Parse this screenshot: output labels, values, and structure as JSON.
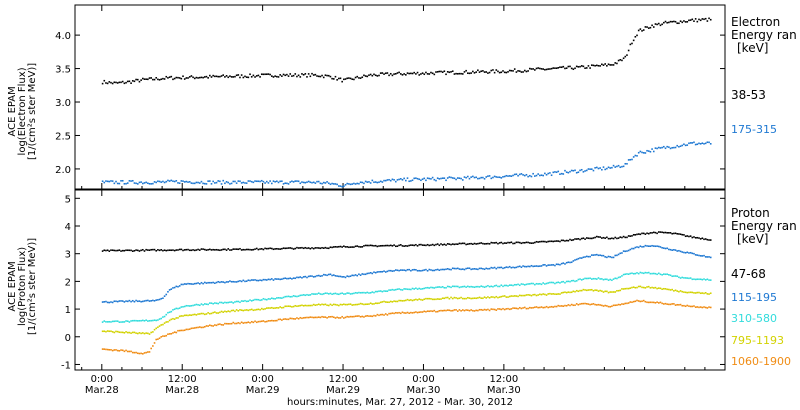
{
  "chart_data": [
    {
      "type": "scatter",
      "panel": "electron",
      "ylabel_lines": [
        "ACE EPAM",
        "log(Electron Flux)",
        "[1/(cm²s ster MeV)]"
      ],
      "legend_title": [
        "Electron",
        "Energy ran",
        "[keV]"
      ],
      "ylim": [
        1.7,
        4.45
      ],
      "yticks": [
        2.0,
        2.5,
        3.0,
        3.5,
        4.0
      ],
      "ytick_labels": [
        "2.0",
        "2.5",
        "3.0",
        "3.5",
        "4.0"
      ],
      "series": [
        {
          "name": "38-53",
          "color": "#000000",
          "points": [
            [
              0,
              3.3
            ],
            [
              2,
              3.28
            ],
            [
              4,
              3.3
            ],
            [
              6,
              3.33
            ],
            [
              10,
              3.36
            ],
            [
              14,
              3.37
            ],
            [
              18,
              3.38
            ],
            [
              22,
              3.39
            ],
            [
              26,
              3.4
            ],
            [
              30,
              3.4
            ],
            [
              32,
              3.4
            ],
            [
              34,
              3.38
            ],
            [
              36,
              3.32
            ],
            [
              38,
              3.36
            ],
            [
              40,
              3.4
            ],
            [
              44,
              3.42
            ],
            [
              48,
              3.43
            ],
            [
              52,
              3.44
            ],
            [
              56,
              3.45
            ],
            [
              60,
              3.46
            ],
            [
              64,
              3.48
            ],
            [
              68,
              3.5
            ],
            [
              72,
              3.52
            ],
            [
              74,
              3.54
            ],
            [
              76,
              3.56
            ],
            [
              77,
              3.6
            ],
            [
              78,
              3.66
            ],
            [
              79,
              3.9
            ],
            [
              80,
              4.06
            ],
            [
              82,
              4.14
            ],
            [
              84,
              4.18
            ],
            [
              86,
              4.2
            ],
            [
              88,
              4.22
            ],
            [
              90,
              4.23
            ],
            [
              91,
              4.23
            ]
          ]
        },
        {
          "name": "175-315",
          "color": "#1e78d2",
          "points": [
            [
              0,
              1.8
            ],
            [
              4,
              1.8
            ],
            [
              8,
              1.8
            ],
            [
              12,
              1.81
            ],
            [
              16,
              1.8
            ],
            [
              20,
              1.8
            ],
            [
              24,
              1.8
            ],
            [
              28,
              1.8
            ],
            [
              32,
              1.8
            ],
            [
              34,
              1.78
            ],
            [
              36,
              1.75
            ],
            [
              38,
              1.8
            ],
            [
              42,
              1.82
            ],
            [
              46,
              1.84
            ],
            [
              50,
              1.85
            ],
            [
              54,
              1.86
            ],
            [
              58,
              1.88
            ],
            [
              62,
              1.9
            ],
            [
              66,
              1.92
            ],
            [
              70,
              1.96
            ],
            [
              74,
              2.0
            ],
            [
              76,
              2.02
            ],
            [
              78,
              2.06
            ],
            [
              79,
              2.16
            ],
            [
              80,
              2.24
            ],
            [
              82,
              2.28
            ],
            [
              84,
              2.32
            ],
            [
              86,
              2.35
            ],
            [
              88,
              2.38
            ],
            [
              91,
              2.38
            ]
          ]
        }
      ]
    },
    {
      "type": "scatter",
      "panel": "proton",
      "ylabel_lines": [
        "ACE EPAM",
        "log(Proton Flux)",
        "[1/(cm²s ster MeV)]"
      ],
      "legend_title": [
        "Proton",
        "Energy ran",
        "[keV]"
      ],
      "ylim": [
        -1.2,
        5.3
      ],
      "yticks": [
        -1,
        0,
        1,
        2,
        3,
        4,
        5
      ],
      "ytick_labels": [
        "-1",
        "0",
        "1",
        "2",
        "3",
        "4",
        "5"
      ],
      "series": [
        {
          "name": "47-68",
          "color": "#000000",
          "points": [
            [
              0,
              3.1
            ],
            [
              6,
              3.12
            ],
            [
              12,
              3.14
            ],
            [
              18,
              3.15
            ],
            [
              22,
              3.16
            ],
            [
              26,
              3.18
            ],
            [
              30,
              3.2
            ],
            [
              34,
              3.22
            ],
            [
              36,
              3.25
            ],
            [
              40,
              3.28
            ],
            [
              46,
              3.3
            ],
            [
              52,
              3.34
            ],
            [
              58,
              3.38
            ],
            [
              64,
              3.4
            ],
            [
              68,
              3.45
            ],
            [
              72,
              3.55
            ],
            [
              74,
              3.6
            ],
            [
              76,
              3.55
            ],
            [
              78,
              3.6
            ],
            [
              80,
              3.7
            ],
            [
              82,
              3.76
            ],
            [
              84,
              3.76
            ],
            [
              86,
              3.7
            ],
            [
              88,
              3.6
            ],
            [
              91,
              3.5
            ]
          ]
        },
        {
          "name": "115-195",
          "color": "#1e78d2",
          "points": [
            [
              0,
              1.25
            ],
            [
              4,
              1.28
            ],
            [
              8,
              1.3
            ],
            [
              9,
              1.4
            ],
            [
              10,
              1.7
            ],
            [
              12,
              1.9
            ],
            [
              16,
              1.95
            ],
            [
              20,
              2.0
            ],
            [
              24,
              2.05
            ],
            [
              28,
              2.1
            ],
            [
              32,
              2.2
            ],
            [
              34,
              2.25
            ],
            [
              36,
              2.15
            ],
            [
              40,
              2.3
            ],
            [
              44,
              2.4
            ],
            [
              48,
              2.4
            ],
            [
              52,
              2.45
            ],
            [
              56,
              2.45
            ],
            [
              60,
              2.5
            ],
            [
              64,
              2.55
            ],
            [
              68,
              2.6
            ],
            [
              70,
              2.7
            ],
            [
              72,
              2.9
            ],
            [
              74,
              2.95
            ],
            [
              76,
              2.85
            ],
            [
              78,
              3.1
            ],
            [
              80,
              3.25
            ],
            [
              82,
              3.3
            ],
            [
              84,
              3.2
            ],
            [
              86,
              3.1
            ],
            [
              88,
              3.0
            ],
            [
              91,
              2.85
            ]
          ]
        },
        {
          "name": "310-580",
          "color": "#32dcdc",
          "points": [
            [
              0,
              0.55
            ],
            [
              4,
              0.55
            ],
            [
              8,
              0.6
            ],
            [
              9,
              0.7
            ],
            [
              10,
              0.9
            ],
            [
              12,
              1.1
            ],
            [
              16,
              1.2
            ],
            [
              20,
              1.25
            ],
            [
              24,
              1.35
            ],
            [
              28,
              1.45
            ],
            [
              32,
              1.55
            ],
            [
              36,
              1.55
            ],
            [
              40,
              1.6
            ],
            [
              44,
              1.7
            ],
            [
              48,
              1.75
            ],
            [
              52,
              1.8
            ],
            [
              56,
              1.8
            ],
            [
              60,
              1.85
            ],
            [
              64,
              1.9
            ],
            [
              68,
              1.95
            ],
            [
              70,
              2.0
            ],
            [
              72,
              2.1
            ],
            [
              74,
              2.1
            ],
            [
              76,
              2.05
            ],
            [
              78,
              2.25
            ],
            [
              80,
              2.3
            ],
            [
              82,
              2.3
            ],
            [
              84,
              2.25
            ],
            [
              86,
              2.15
            ],
            [
              88,
              2.1
            ],
            [
              91,
              2.05
            ]
          ]
        },
        {
          "name": "795-1193",
          "color": "#d2d200",
          "points": [
            [
              0,
              0.2
            ],
            [
              4,
              0.15
            ],
            [
              7,
              0.1
            ],
            [
              8,
              0.3
            ],
            [
              10,
              0.6
            ],
            [
              12,
              0.75
            ],
            [
              16,
              0.85
            ],
            [
              20,
              0.95
            ],
            [
              24,
              1.0
            ],
            [
              28,
              1.1
            ],
            [
              32,
              1.15
            ],
            [
              36,
              1.15
            ],
            [
              40,
              1.2
            ],
            [
              44,
              1.3
            ],
            [
              48,
              1.35
            ],
            [
              52,
              1.4
            ],
            [
              56,
              1.4
            ],
            [
              60,
              1.45
            ],
            [
              64,
              1.5
            ],
            [
              68,
              1.55
            ],
            [
              72,
              1.7
            ],
            [
              74,
              1.65
            ],
            [
              76,
              1.6
            ],
            [
              78,
              1.75
            ],
            [
              80,
              1.8
            ],
            [
              82,
              1.78
            ],
            [
              84,
              1.72
            ],
            [
              86,
              1.65
            ],
            [
              88,
              1.6
            ],
            [
              91,
              1.55
            ]
          ]
        },
        {
          "name": "1060-1900",
          "color": "#f08c14",
          "points": [
            [
              0,
              -0.45
            ],
            [
              3,
              -0.5
            ],
            [
              6,
              -0.6
            ],
            [
              7,
              -0.55
            ],
            [
              8,
              -0.1
            ],
            [
              10,
              0.1
            ],
            [
              12,
              0.25
            ],
            [
              16,
              0.4
            ],
            [
              20,
              0.5
            ],
            [
              24,
              0.55
            ],
            [
              28,
              0.65
            ],
            [
              32,
              0.7
            ],
            [
              36,
              0.7
            ],
            [
              40,
              0.75
            ],
            [
              44,
              0.85
            ],
            [
              48,
              0.9
            ],
            [
              52,
              0.95
            ],
            [
              56,
              0.95
            ],
            [
              60,
              1.0
            ],
            [
              64,
              1.05
            ],
            [
              68,
              1.1
            ],
            [
              72,
              1.2
            ],
            [
              74,
              1.15
            ],
            [
              76,
              1.1
            ],
            [
              78,
              1.2
            ],
            [
              80,
              1.3
            ],
            [
              82,
              1.25
            ],
            [
              84,
              1.2
            ],
            [
              86,
              1.15
            ],
            [
              88,
              1.1
            ],
            [
              91,
              1.05
            ]
          ]
        }
      ]
    }
  ],
  "xaxis": {
    "range_hours": [
      -4,
      93
    ],
    "ticks": [
      {
        "h": 0,
        "top": "0:00",
        "bottom": "Mar.28"
      },
      {
        "h": 12,
        "top": "12:00",
        "bottom": "Mar.28"
      },
      {
        "h": 24,
        "top": "0:00",
        "bottom": "Mar.29"
      },
      {
        "h": 36,
        "top": "12:00",
        "bottom": "Mar.29"
      },
      {
        "h": 48,
        "top": "0:00",
        "bottom": "Mar.30"
      },
      {
        "h": 60,
        "top": "12:00",
        "bottom": "Mar.30"
      }
    ],
    "label": "hours:minutes, Mar. 27, 2012 - Mar. 30, 2012"
  },
  "colors": {
    "series_38_53": "#000000",
    "series_175_315": "#1e78d2",
    "series_47_68": "#000000",
    "series_115_195": "#1e78d2",
    "series_310_580": "#32dcdc",
    "series_795_1193": "#d2d200",
    "series_1060_1900": "#f08c14"
  }
}
